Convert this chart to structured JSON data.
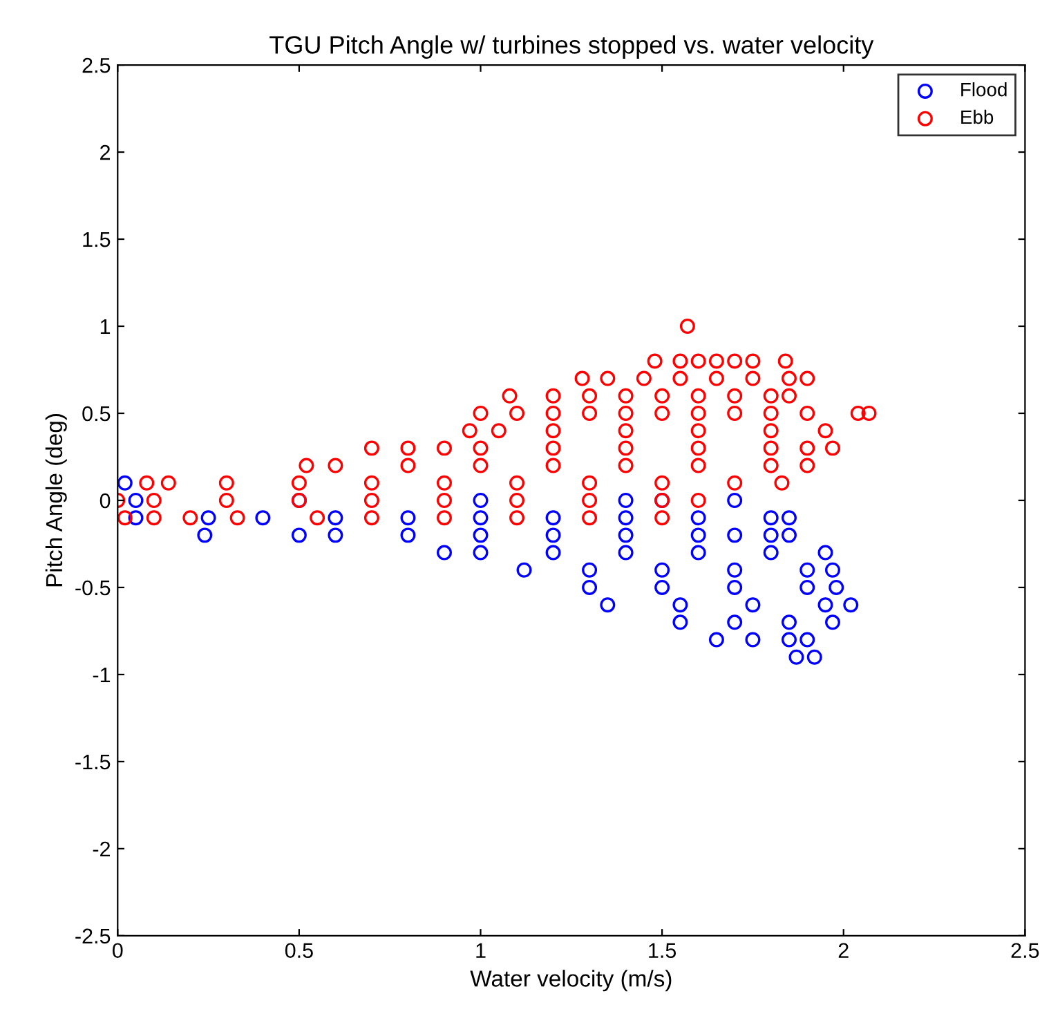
{
  "chart_data": {
    "type": "scatter",
    "title": "TGU Pitch Angle w/ turbines stopped vs. water velocity",
    "xlabel": "Water velocity (m/s)",
    "ylabel": "Pitch Angle (deg)",
    "xlim": [
      0,
      2.5
    ],
    "ylim": [
      -2.5,
      2.5
    ],
    "xticks": [
      0,
      0.5,
      1,
      1.5,
      2,
      2.5
    ],
    "yticks": [
      -2.5,
      -2,
      -1.5,
      -1,
      -0.5,
      0,
      0.5,
      1,
      1.5,
      2,
      2.5
    ],
    "grid": false,
    "legend": "top right",
    "marker": "circle",
    "series": [
      {
        "name": "Flood",
        "color": "#0000ff",
        "x": [
          0.02,
          0.05,
          0.5,
          1.0,
          1.4,
          1.5,
          1.7,
          0.05,
          0.25,
          0.4,
          0.6,
          0.8,
          1.0,
          1.2,
          1.4,
          1.6,
          1.8,
          1.85,
          0.24,
          0.5,
          0.6,
          0.8,
          1.0,
          1.2,
          1.4,
          1.6,
          1.7,
          1.8,
          1.85,
          0.9,
          1.0,
          1.2,
          1.4,
          1.6,
          1.8,
          1.95,
          1.12,
          1.3,
          1.5,
          1.7,
          1.9,
          1.97,
          1.3,
          1.5,
          1.7,
          1.9,
          1.98,
          1.35,
          1.55,
          1.75,
          1.95,
          2.02,
          1.55,
          1.7,
          1.85,
          1.97,
          1.65,
          1.75,
          1.85,
          1.9,
          1.87,
          1.92
        ],
        "values": [
          0.1,
          0,
          0,
          0,
          0,
          0,
          0,
          -0.1,
          -0.1,
          -0.1,
          -0.1,
          -0.1,
          -0.1,
          -0.1,
          -0.1,
          -0.1,
          -0.1,
          -0.1,
          -0.2,
          -0.2,
          -0.2,
          -0.2,
          -0.2,
          -0.2,
          -0.2,
          -0.2,
          -0.2,
          -0.2,
          -0.2,
          -0.3,
          -0.3,
          -0.3,
          -0.3,
          -0.3,
          -0.3,
          -0.3,
          -0.4,
          -0.4,
          -0.4,
          -0.4,
          -0.4,
          -0.4,
          -0.5,
          -0.5,
          -0.5,
          -0.5,
          -0.5,
          -0.6,
          -0.6,
          -0.6,
          -0.6,
          -0.6,
          -0.7,
          -0.7,
          -0.7,
          -0.7,
          -0.8,
          -0.8,
          -0.8,
          -0.8,
          -0.9,
          -0.9
        ]
      },
      {
        "name": "Ebb",
        "color": "#ff0000",
        "x": [
          1.57,
          1.48,
          1.55,
          1.6,
          1.65,
          1.7,
          1.75,
          1.84,
          1.28,
          1.35,
          1.45,
          1.55,
          1.65,
          1.75,
          1.85,
          1.9,
          1.08,
          1.2,
          1.3,
          1.4,
          1.5,
          1.6,
          1.7,
          1.8,
          1.85,
          1.0,
          1.1,
          1.2,
          1.3,
          1.4,
          1.5,
          1.6,
          1.7,
          1.8,
          1.9,
          2.04,
          2.07,
          0.97,
          1.05,
          1.2,
          1.4,
          1.6,
          1.8,
          1.95,
          0.7,
          0.8,
          0.9,
          1.0,
          1.2,
          1.4,
          1.6,
          1.8,
          1.9,
          1.97,
          0.52,
          0.6,
          0.8,
          1.0,
          1.2,
          1.4,
          1.6,
          1.8,
          1.9,
          0.08,
          0.14,
          0.3,
          0.5,
          0.7,
          0.9,
          1.1,
          1.3,
          1.5,
          1.7,
          1.83,
          0.0,
          0.1,
          0.3,
          0.5,
          0.7,
          0.9,
          1.1,
          1.3,
          1.5,
          1.6,
          0.02,
          0.1,
          0.2,
          0.33,
          0.55,
          0.7,
          0.9,
          1.1,
          1.3,
          1.5
        ],
        "values": [
          1.0,
          0.8,
          0.8,
          0.8,
          0.8,
          0.8,
          0.8,
          0.8,
          0.7,
          0.7,
          0.7,
          0.7,
          0.7,
          0.7,
          0.7,
          0.7,
          0.6,
          0.6,
          0.6,
          0.6,
          0.6,
          0.6,
          0.6,
          0.6,
          0.6,
          0.5,
          0.5,
          0.5,
          0.5,
          0.5,
          0.5,
          0.5,
          0.5,
          0.5,
          0.5,
          0.5,
          0.5,
          0.4,
          0.4,
          0.4,
          0.4,
          0.4,
          0.4,
          0.4,
          0.3,
          0.3,
          0.3,
          0.3,
          0.3,
          0.3,
          0.3,
          0.3,
          0.3,
          0.3,
          0.2,
          0.2,
          0.2,
          0.2,
          0.2,
          0.2,
          0.2,
          0.2,
          0.2,
          0.1,
          0.1,
          0.1,
          0.1,
          0.1,
          0.1,
          0.1,
          0.1,
          0.1,
          0.1,
          0.1,
          0,
          0,
          0,
          0,
          0,
          0,
          0,
          0,
          0,
          0,
          -0.1,
          -0.1,
          -0.1,
          -0.1,
          -0.1,
          -0.1,
          -0.1,
          -0.1,
          -0.1,
          -0.1
        ]
      }
    ]
  }
}
